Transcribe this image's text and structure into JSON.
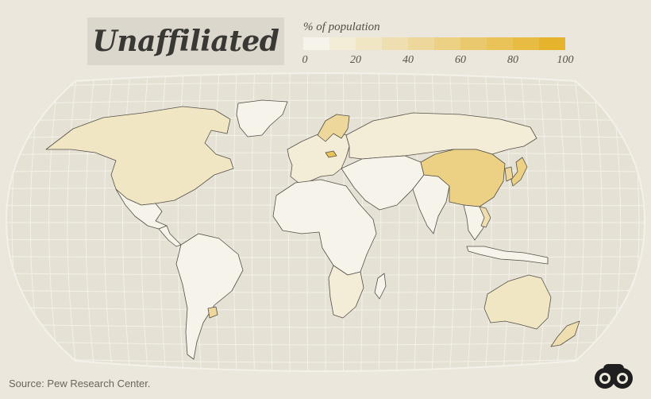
{
  "title": "Unaffiliated",
  "legend": {
    "label": "% of population",
    "ticks": [
      "0",
      "20",
      "40",
      "60",
      "80",
      "100"
    ],
    "tick_values": [
      0,
      20,
      40,
      60,
      80,
      100
    ],
    "colors": [
      "#f6f3ea",
      "#f3ecd6",
      "#f1e6c4",
      "#efdfb0",
      "#edd79a",
      "#ecd084",
      "#eac96e",
      "#e9c258",
      "#e8bb42",
      "#e6b42c"
    ]
  },
  "colors": {
    "background": "#ebe7dd",
    "ocean": "#e5e1d5",
    "graticule": "#f4f1ea",
    "land_border": "#555048",
    "accent": "#e6b42c"
  },
  "map": {
    "projection": "winkel-tripel",
    "regions": [
      {
        "name": "North America",
        "value": 20
      },
      {
        "name": "Greenland",
        "value": 2
      },
      {
        "name": "Mexico",
        "value": 5
      },
      {
        "name": "Central America",
        "value": 4
      },
      {
        "name": "South America",
        "value": 8
      },
      {
        "name": "Uruguay",
        "value": 40
      },
      {
        "name": "Europe",
        "value": 18
      },
      {
        "name": "Czech Republic",
        "value": 76
      },
      {
        "name": "Africa",
        "value": 2
      },
      {
        "name": "Southern Africa",
        "value": 15
      },
      {
        "name": "Madagascar",
        "value": 8
      },
      {
        "name": "Russia",
        "value": 16
      },
      {
        "name": "Middle East",
        "value": 1
      },
      {
        "name": "India",
        "value": 1
      },
      {
        "name": "China",
        "value": 52
      },
      {
        "name": "Korea",
        "value": 46
      },
      {
        "name": "Japan",
        "value": 57
      },
      {
        "name": "Southeast Asia",
        "value": 4
      },
      {
        "name": "Vietnam",
        "value": 30
      },
      {
        "name": "Indonesia",
        "value": 1
      },
      {
        "name": "Australia",
        "value": 24
      },
      {
        "name": "New Zealand",
        "value": 37
      },
      {
        "name": "Scandinavia",
        "value": 40
      }
    ]
  },
  "source": "Source: Pew Research Center.",
  "logo_icon": "binoculars-icon"
}
